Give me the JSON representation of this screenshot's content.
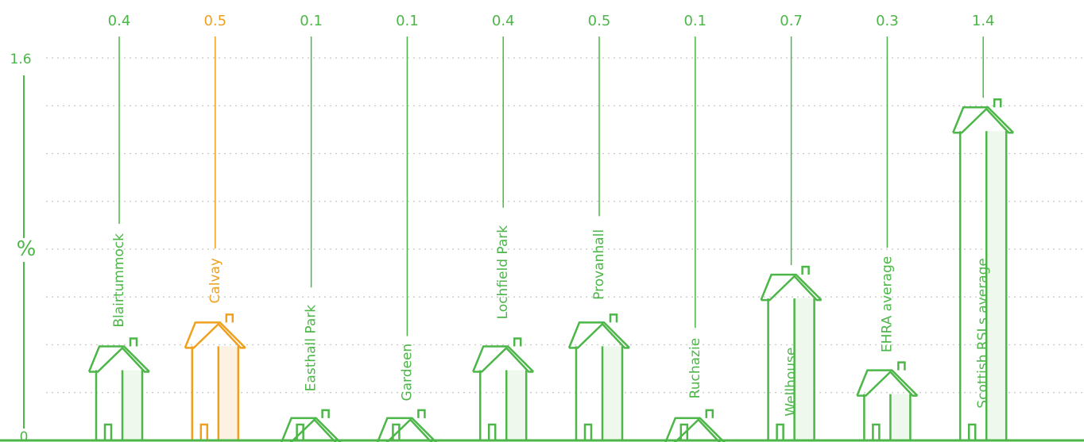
{
  "chart_data": {
    "type": "bar",
    "categories": [
      "Blairtummock",
      "Calvay",
      "Easthall Park",
      "Gardeen",
      "Lochfield Park",
      "Provanhall",
      "Ruchazie",
      "Wellhouse",
      "EHRA average",
      "Scottish RSLs average"
    ],
    "values": [
      0.4,
      0.5,
      0.1,
      0.1,
      0.4,
      0.5,
      0.1,
      0.7,
      0.3,
      1.4
    ],
    "value_labels": [
      "0.4",
      "0.5",
      "0.1",
      "0.1",
      "0.4",
      "0.5",
      "0.1",
      "0.7",
      "0.3",
      "1.4"
    ],
    "highlight": "Calvay",
    "ylabel": "%",
    "ylim": [
      0,
      1.6
    ],
    "ytick_labels": [
      "0",
      "1.6"
    ],
    "grid": true,
    "colors": {
      "primary": "#4cb648",
      "highlight": "#f0a01e",
      "fill": "#eef8ec",
      "highlight_fill": "#fdf1e2",
      "grid": "#c8c8c8"
    }
  }
}
